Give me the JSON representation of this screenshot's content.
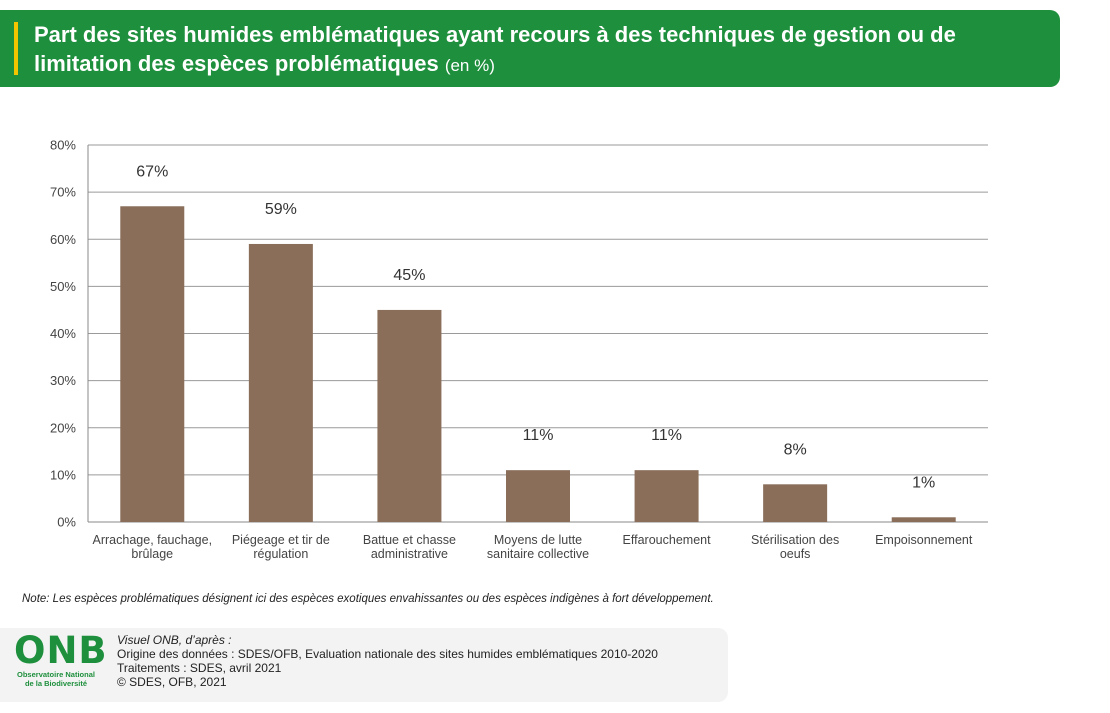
{
  "header": {
    "title": "Part des sites humides emblématiques ayant recours à des techniques de gestion ou de limitation des espèces problématiques",
    "unit": "(en %)"
  },
  "colors": {
    "header_bg": "#1e8f3d",
    "accent_bar": "#f2c500",
    "bar": "#8a6e5a",
    "grid": "#9a9a9a"
  },
  "chart_data": {
    "type": "bar",
    "categories": [
      [
        "Arrachage, fauchage,",
        "brûlage"
      ],
      [
        "Piégeage et tir de",
        "régulation"
      ],
      [
        "Battue et chasse",
        "administrative"
      ],
      [
        "Moyens de lutte",
        "sanitaire collective"
      ],
      [
        "Effarouchement"
      ],
      [
        "Stérilisation des",
        "oeufs"
      ],
      [
        "Empoisonnement"
      ]
    ],
    "values": [
      67,
      59,
      45,
      11,
      11,
      8,
      1
    ],
    "value_labels": [
      "67%",
      "59%",
      "45%",
      "11%",
      "11%",
      "8%",
      "1%"
    ],
    "ylim": [
      0,
      80
    ],
    "yticks": [
      "0%",
      "10%",
      "20%",
      "30%",
      "40%",
      "50%",
      "60%",
      "70%",
      "80%"
    ],
    "grid": true
  },
  "note": "Note: Les espèces problématiques désignent ici des espèces exotiques envahissantes ou des espèces indigènes à fort développement.",
  "footer": {
    "logo_main": "ONB",
    "logo_sub1": "Observatoire National",
    "logo_sub2": "de la Biodiversité",
    "credit_line1": "Visuel ONB, d’après :",
    "credit_line2": "Origine des données : SDES/OFB, Evaluation nationale des sites humides emblématiques 2010-2020",
    "credit_line3": "Traitements : SDES, avril 2021",
    "credit_line4": "© SDES, OFB, 2021"
  }
}
